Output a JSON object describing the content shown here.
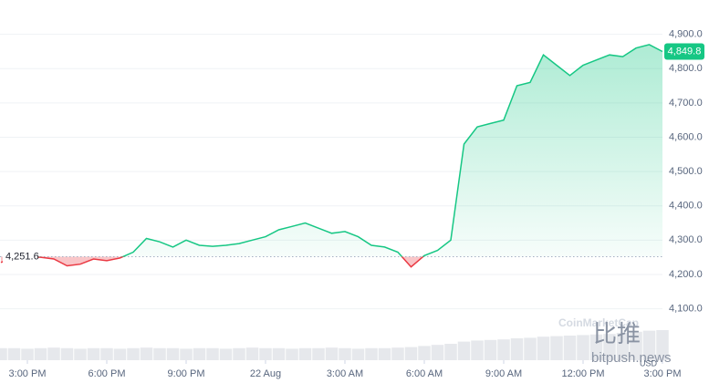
{
  "chart_data": {
    "type": "line",
    "xlim": [
      0,
      50
    ],
    "xticks": [
      {
        "value": 2,
        "label": "3:00 PM"
      },
      {
        "value": 8,
        "label": "6:00 PM"
      },
      {
        "value": 14,
        "label": "9:00 PM"
      },
      {
        "value": 20,
        "label": "22 Aug"
      },
      {
        "value": 26,
        "label": "3:00 AM"
      },
      {
        "value": 32,
        "label": "6:00 AM"
      },
      {
        "value": 38,
        "label": "9:00 AM"
      },
      {
        "value": 44,
        "label": "12:00 PM"
      },
      {
        "value": 50,
        "label": "3:00 PM"
      }
    ],
    "ylim": [
      3950,
      5000
    ],
    "yticks": [
      {
        "value": 4100,
        "label": "4,100.0"
      },
      {
        "value": 4200,
        "label": "4,200.0"
      },
      {
        "value": 4300,
        "label": "4,300.0"
      },
      {
        "value": 4400,
        "label": "4,400.0"
      },
      {
        "value": 4500,
        "label": "4,500.0"
      },
      {
        "value": 4600,
        "label": "4,600.0"
      },
      {
        "value": 4700,
        "label": "4,700.0"
      },
      {
        "value": 4800,
        "label": "4,800.0"
      },
      {
        "value": 4900,
        "label": "4,900.0"
      }
    ],
    "grid": true,
    "x": [
      0,
      1,
      2,
      3,
      4,
      5,
      6,
      7,
      8,
      9,
      10,
      11,
      12,
      13,
      14,
      15,
      16,
      17,
      18,
      19,
      20,
      21,
      22,
      23,
      24,
      25,
      26,
      27,
      28,
      29,
      30,
      31,
      32,
      33,
      34,
      35,
      36,
      37,
      38,
      39,
      40,
      41,
      42,
      43,
      44,
      45,
      46,
      47,
      48,
      49,
      50
    ],
    "values": [
      4235,
      4250,
      4252,
      4250,
      4245,
      4225,
      4230,
      4245,
      4240,
      4248,
      4265,
      4305,
      4295,
      4280,
      4300,
      4285,
      4282,
      4285,
      4290,
      4300,
      4310,
      4330,
      4340,
      4350,
      4335,
      4320,
      4325,
      4310,
      4285,
      4280,
      4265,
      4222,
      4255,
      4270,
      4300,
      4580,
      4630,
      4640,
      4650,
      4750,
      4760,
      4840,
      4810,
      4780,
      4810,
      4825,
      4840,
      4835,
      4860,
      4870,
      4849.8
    ],
    "up_color": "#16c784",
    "down_color": "#ea3943",
    "baseline": {
      "value": 4251.6,
      "label": "4,251.6"
    },
    "last_price": {
      "value": 4849.8,
      "label": "4,849.8"
    },
    "volume": {
      "lim": [
        0,
        100
      ],
      "color": "#e6e8ec",
      "values": [
        22,
        22,
        21,
        22,
        23,
        22,
        21,
        22,
        22,
        21,
        22,
        23,
        22,
        22,
        21,
        22,
        22,
        21,
        22,
        23,
        22,
        22,
        21,
        22,
        22,
        23,
        22,
        21,
        22,
        22,
        23,
        24,
        26,
        28,
        30,
        34,
        36,
        37,
        38,
        40,
        41,
        43,
        44,
        45,
        46,
        47,
        48,
        50,
        52,
        54,
        55
      ]
    },
    "currency": "USD",
    "watermark": [
      "CoinMarketCap",
      "比推",
      "bitpush.news"
    ]
  }
}
